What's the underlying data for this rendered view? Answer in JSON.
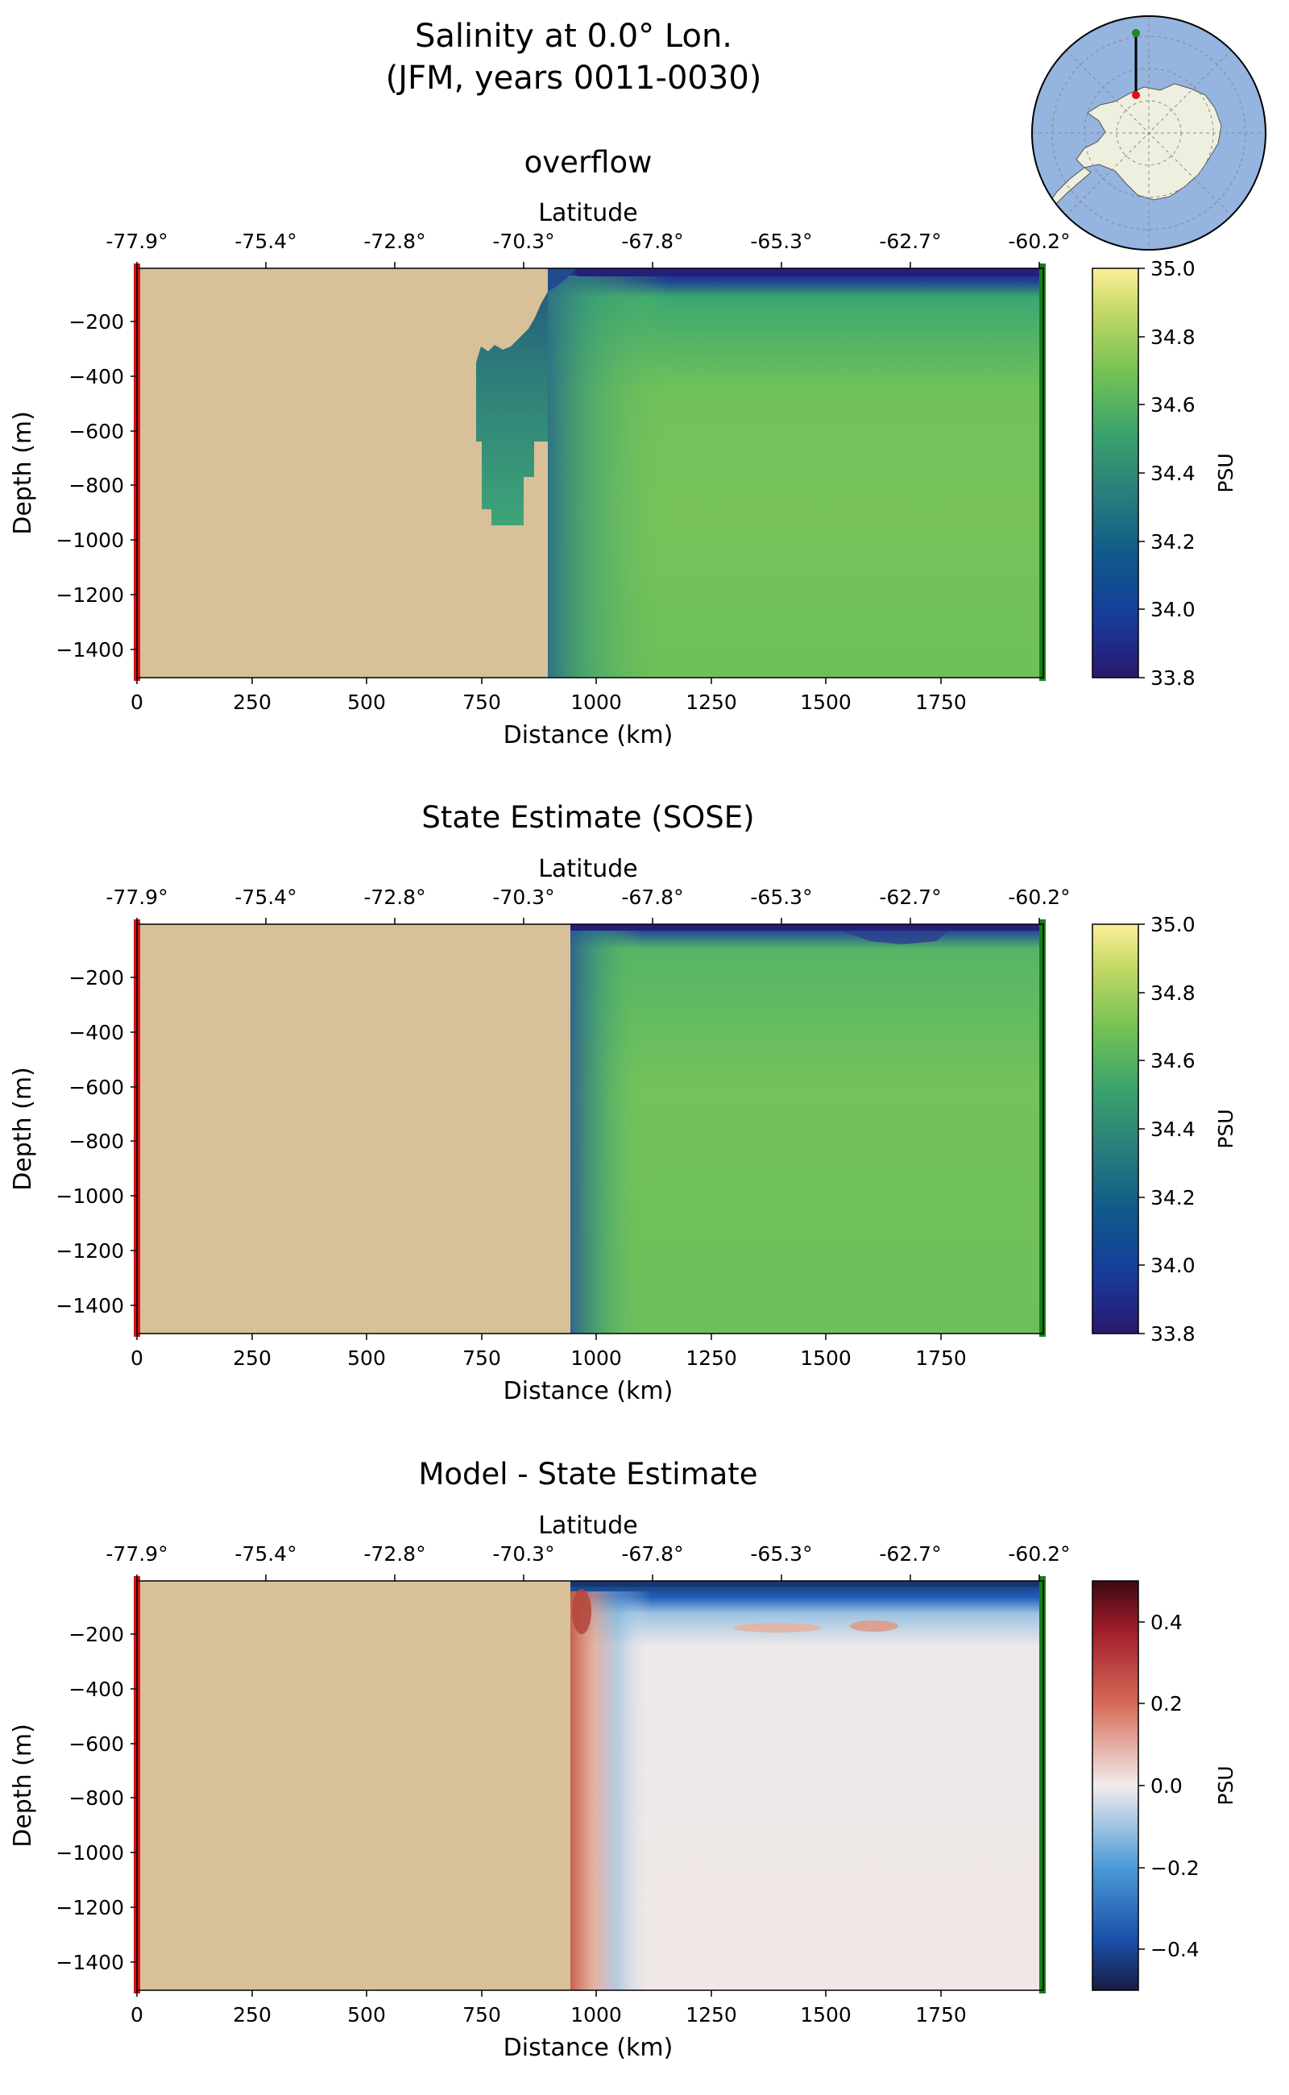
{
  "figure": {
    "title": "Salinity at 0.0° Lon.",
    "subtitle": "(JFM, years 0011-0030)",
    "inset_map": {
      "region": "Antarctica (south polar projection)",
      "ocean_color": "#95b4df",
      "land_color": "#efefdf",
      "transect_start_marker": "red",
      "transect_end_marker": "green"
    }
  },
  "chart_data": [
    {
      "type": "heatmap",
      "title": "overflow",
      "xlabel": "Distance (km)",
      "ylabel": "Depth (m)",
      "top_xlabel": "Latitude",
      "x_ticks": [
        "0",
        "250",
        "500",
        "750",
        "1000",
        "1250",
        "1500",
        "1750"
      ],
      "y_ticks": [
        "−200",
        "−400",
        "−600",
        "−800",
        "−1000",
        "−1200",
        "−1400"
      ],
      "lat_ticks": [
        "-77.9°",
        "-75.4°",
        "-72.8°",
        "-70.3°",
        "-67.8°",
        "-65.3°",
        "-62.7°",
        "-60.2°"
      ],
      "xlim": [
        0,
        1975
      ],
      "ylim": [
        -1500,
        0
      ],
      "colorbar": {
        "label": "PSU",
        "cmap": "haline",
        "vmin": 33.8,
        "vmax": 35.0,
        "ticks": [
          "33.8",
          "34.0",
          "34.2",
          "34.4",
          "34.6",
          "34.8",
          "35.0"
        ]
      },
      "land_color": "#d8c098",
      "ocean_start_km": 895,
      "ice_shelf_cavity": {
        "x_range_km": [
          745,
          895
        ],
        "depth_range_m": [
          -1000,
          -280
        ]
      },
      "fields": {
        "surface_fresh_layer": {
          "value_psu": 33.9,
          "depth_m": [
            -100,
            0
          ]
        },
        "interior": {
          "value_psu": 34.68,
          "depth_m": [
            -1500,
            -150
          ]
        }
      },
      "markers": {
        "left_edge": "red",
        "right_edge": "green"
      }
    },
    {
      "type": "heatmap",
      "title": "State Estimate (SOSE)",
      "xlabel": "Distance (km)",
      "ylabel": "Depth (m)",
      "top_xlabel": "Latitude",
      "x_ticks": [
        "0",
        "250",
        "500",
        "750",
        "1000",
        "1250",
        "1500",
        "1750"
      ],
      "y_ticks": [
        "−200",
        "−400",
        "−600",
        "−800",
        "−1000",
        "−1200",
        "−1400"
      ],
      "lat_ticks": [
        "-77.9°",
        "-75.4°",
        "-72.8°",
        "-70.3°",
        "-67.8°",
        "-65.3°",
        "-62.7°",
        "-60.2°"
      ],
      "xlim": [
        0,
        1975
      ],
      "ylim": [
        -1500,
        0
      ],
      "colorbar": {
        "label": "PSU",
        "cmap": "haline",
        "vmin": 33.8,
        "vmax": 35.0,
        "ticks": [
          "33.8",
          "34.0",
          "34.2",
          "34.4",
          "34.6",
          "34.8",
          "35.0"
        ]
      },
      "land_color": "#d8c098",
      "ocean_start_km": 945,
      "fields": {
        "surface_fresh_layer": {
          "value_psu": 34.0,
          "depth_m": [
            -50,
            0
          ]
        },
        "interior": {
          "value_psu": 34.68,
          "depth_m": [
            -1500,
            -100
          ]
        }
      },
      "markers": {
        "left_edge": "red",
        "right_edge": "green"
      }
    },
    {
      "type": "heatmap",
      "title": "Model - State Estimate",
      "xlabel": "Distance (km)",
      "ylabel": "Depth (m)",
      "top_xlabel": "Latitude",
      "x_ticks": [
        "0",
        "250",
        "500",
        "750",
        "1000",
        "1250",
        "1500",
        "1750"
      ],
      "y_ticks": [
        "−200",
        "−400",
        "−600",
        "−800",
        "−1000",
        "−1200",
        "−1400"
      ],
      "lat_ticks": [
        "-77.9°",
        "-75.4°",
        "-72.8°",
        "-70.3°",
        "-67.8°",
        "-65.3°",
        "-62.7°",
        "-60.2°"
      ],
      "xlim": [
        0,
        1975
      ],
      "ylim": [
        -1500,
        0
      ],
      "colorbar": {
        "label": "PSU",
        "cmap": "balance",
        "vmin": -0.5,
        "vmax": 0.5,
        "ticks": [
          "−0.4",
          "−0.2",
          "0.0",
          "0.2",
          "0.4"
        ]
      },
      "land_color": "#d8c098",
      "ocean_start_km": 945,
      "fields": {
        "surface_negative_layer": {
          "value_psu": -0.45,
          "depth_m": [
            -80,
            0
          ]
        },
        "coastal_positive_anomaly": {
          "value_psu": 0.3,
          "x_km": [
            945,
            1010
          ]
        },
        "interior": {
          "value_psu": 0.02
        }
      },
      "markers": {
        "left_edge": "red",
        "right_edge": "green"
      }
    }
  ]
}
